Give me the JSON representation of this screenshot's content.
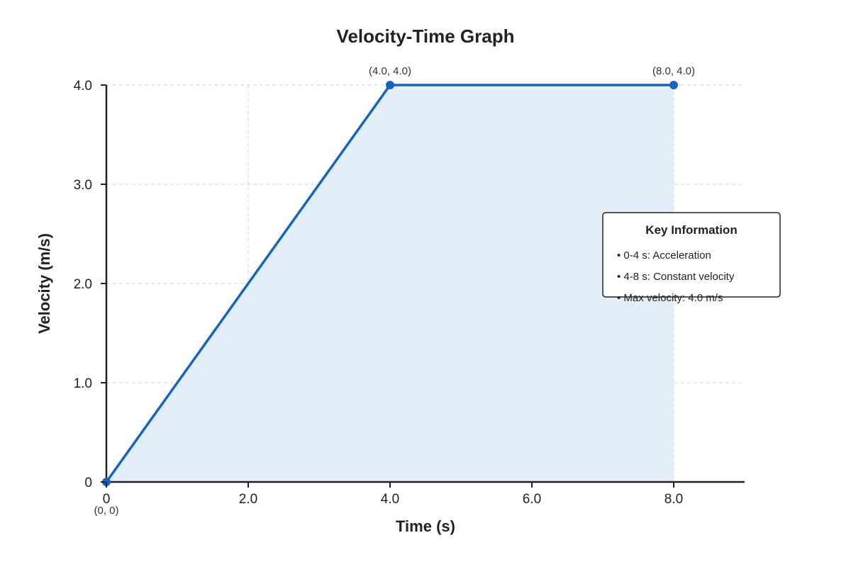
{
  "chart_data": {
    "type": "line",
    "title": "Velocity-Time Graph",
    "xlabel": "Time (s)",
    "ylabel": "Velocity (m/s)",
    "xlim": [
      0,
      9
    ],
    "ylim": [
      0,
      4
    ],
    "x_ticks": [
      0,
      2,
      4,
      6,
      8
    ],
    "x_tick_labels": [
      "0",
      "2.0",
      "4.0",
      "6.0",
      "8.0"
    ],
    "y_ticks": [
      0,
      1,
      2,
      3,
      4
    ],
    "y_tick_labels": [
      "0",
      "1.0",
      "2.0",
      "3.0",
      "4.0"
    ],
    "grid": true,
    "area_fill": true,
    "series": [
      {
        "x": [
          0,
          4,
          8
        ],
        "y": [
          0,
          4,
          4
        ],
        "point_labels": [
          "(0, 0)",
          "(4.0, 4.0)",
          "(8.0, 4.0)"
        ]
      }
    ],
    "colors": {
      "line": "#1565c0",
      "area": "#e3eef9",
      "grid": "#d0d0d0",
      "axis": "#222222"
    },
    "info_box": {
      "title": "Key Information",
      "items": [
        "• 0-4 s: Acceleration",
        "• 4-8 s: Constant velocity",
        "• Max velocity: 4.0 m/s"
      ]
    }
  }
}
